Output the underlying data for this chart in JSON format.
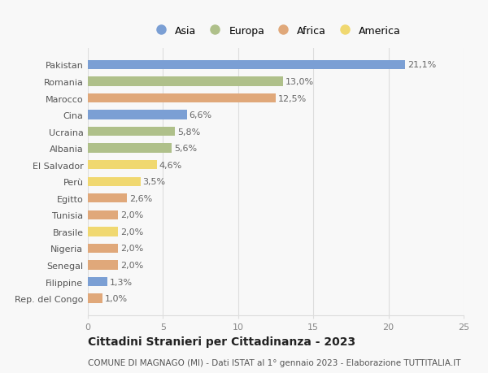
{
  "countries": [
    "Pakistan",
    "Romania",
    "Marocco",
    "Cina",
    "Ucraina",
    "Albania",
    "El Salvador",
    "Perù",
    "Egitto",
    "Tunisia",
    "Brasile",
    "Nigeria",
    "Senegal",
    "Filippine",
    "Rep. del Congo"
  ],
  "values": [
    21.1,
    13.0,
    12.5,
    6.6,
    5.8,
    5.6,
    4.6,
    3.5,
    2.6,
    2.0,
    2.0,
    2.0,
    2.0,
    1.3,
    1.0
  ],
  "continents": [
    "Asia",
    "Europa",
    "Africa",
    "Asia",
    "Europa",
    "Europa",
    "America",
    "America",
    "Africa",
    "Africa",
    "America",
    "Africa",
    "Africa",
    "Asia",
    "Africa"
  ],
  "colors": {
    "Asia": "#7b9fd4",
    "Europa": "#afc08a",
    "Africa": "#e0a87a",
    "America": "#f0d870"
  },
  "bar_height": 0.55,
  "xlim": [
    0,
    25
  ],
  "xticks": [
    0,
    5,
    10,
    15,
    20,
    25
  ],
  "title": "Cittadini Stranieri per Cittadinanza - 2023",
  "subtitle": "COMUNE DI MAGNAGO (MI) - Dati ISTAT al 1° gennaio 2023 - Elaborazione TUTTITALIA.IT",
  "background_color": "#f8f8f8",
  "grid_color": "#dddddd",
  "title_fontsize": 10,
  "subtitle_fontsize": 7.5,
  "label_fontsize": 8,
  "tick_fontsize": 8,
  "value_fontsize": 8,
  "legend_fontsize": 9
}
